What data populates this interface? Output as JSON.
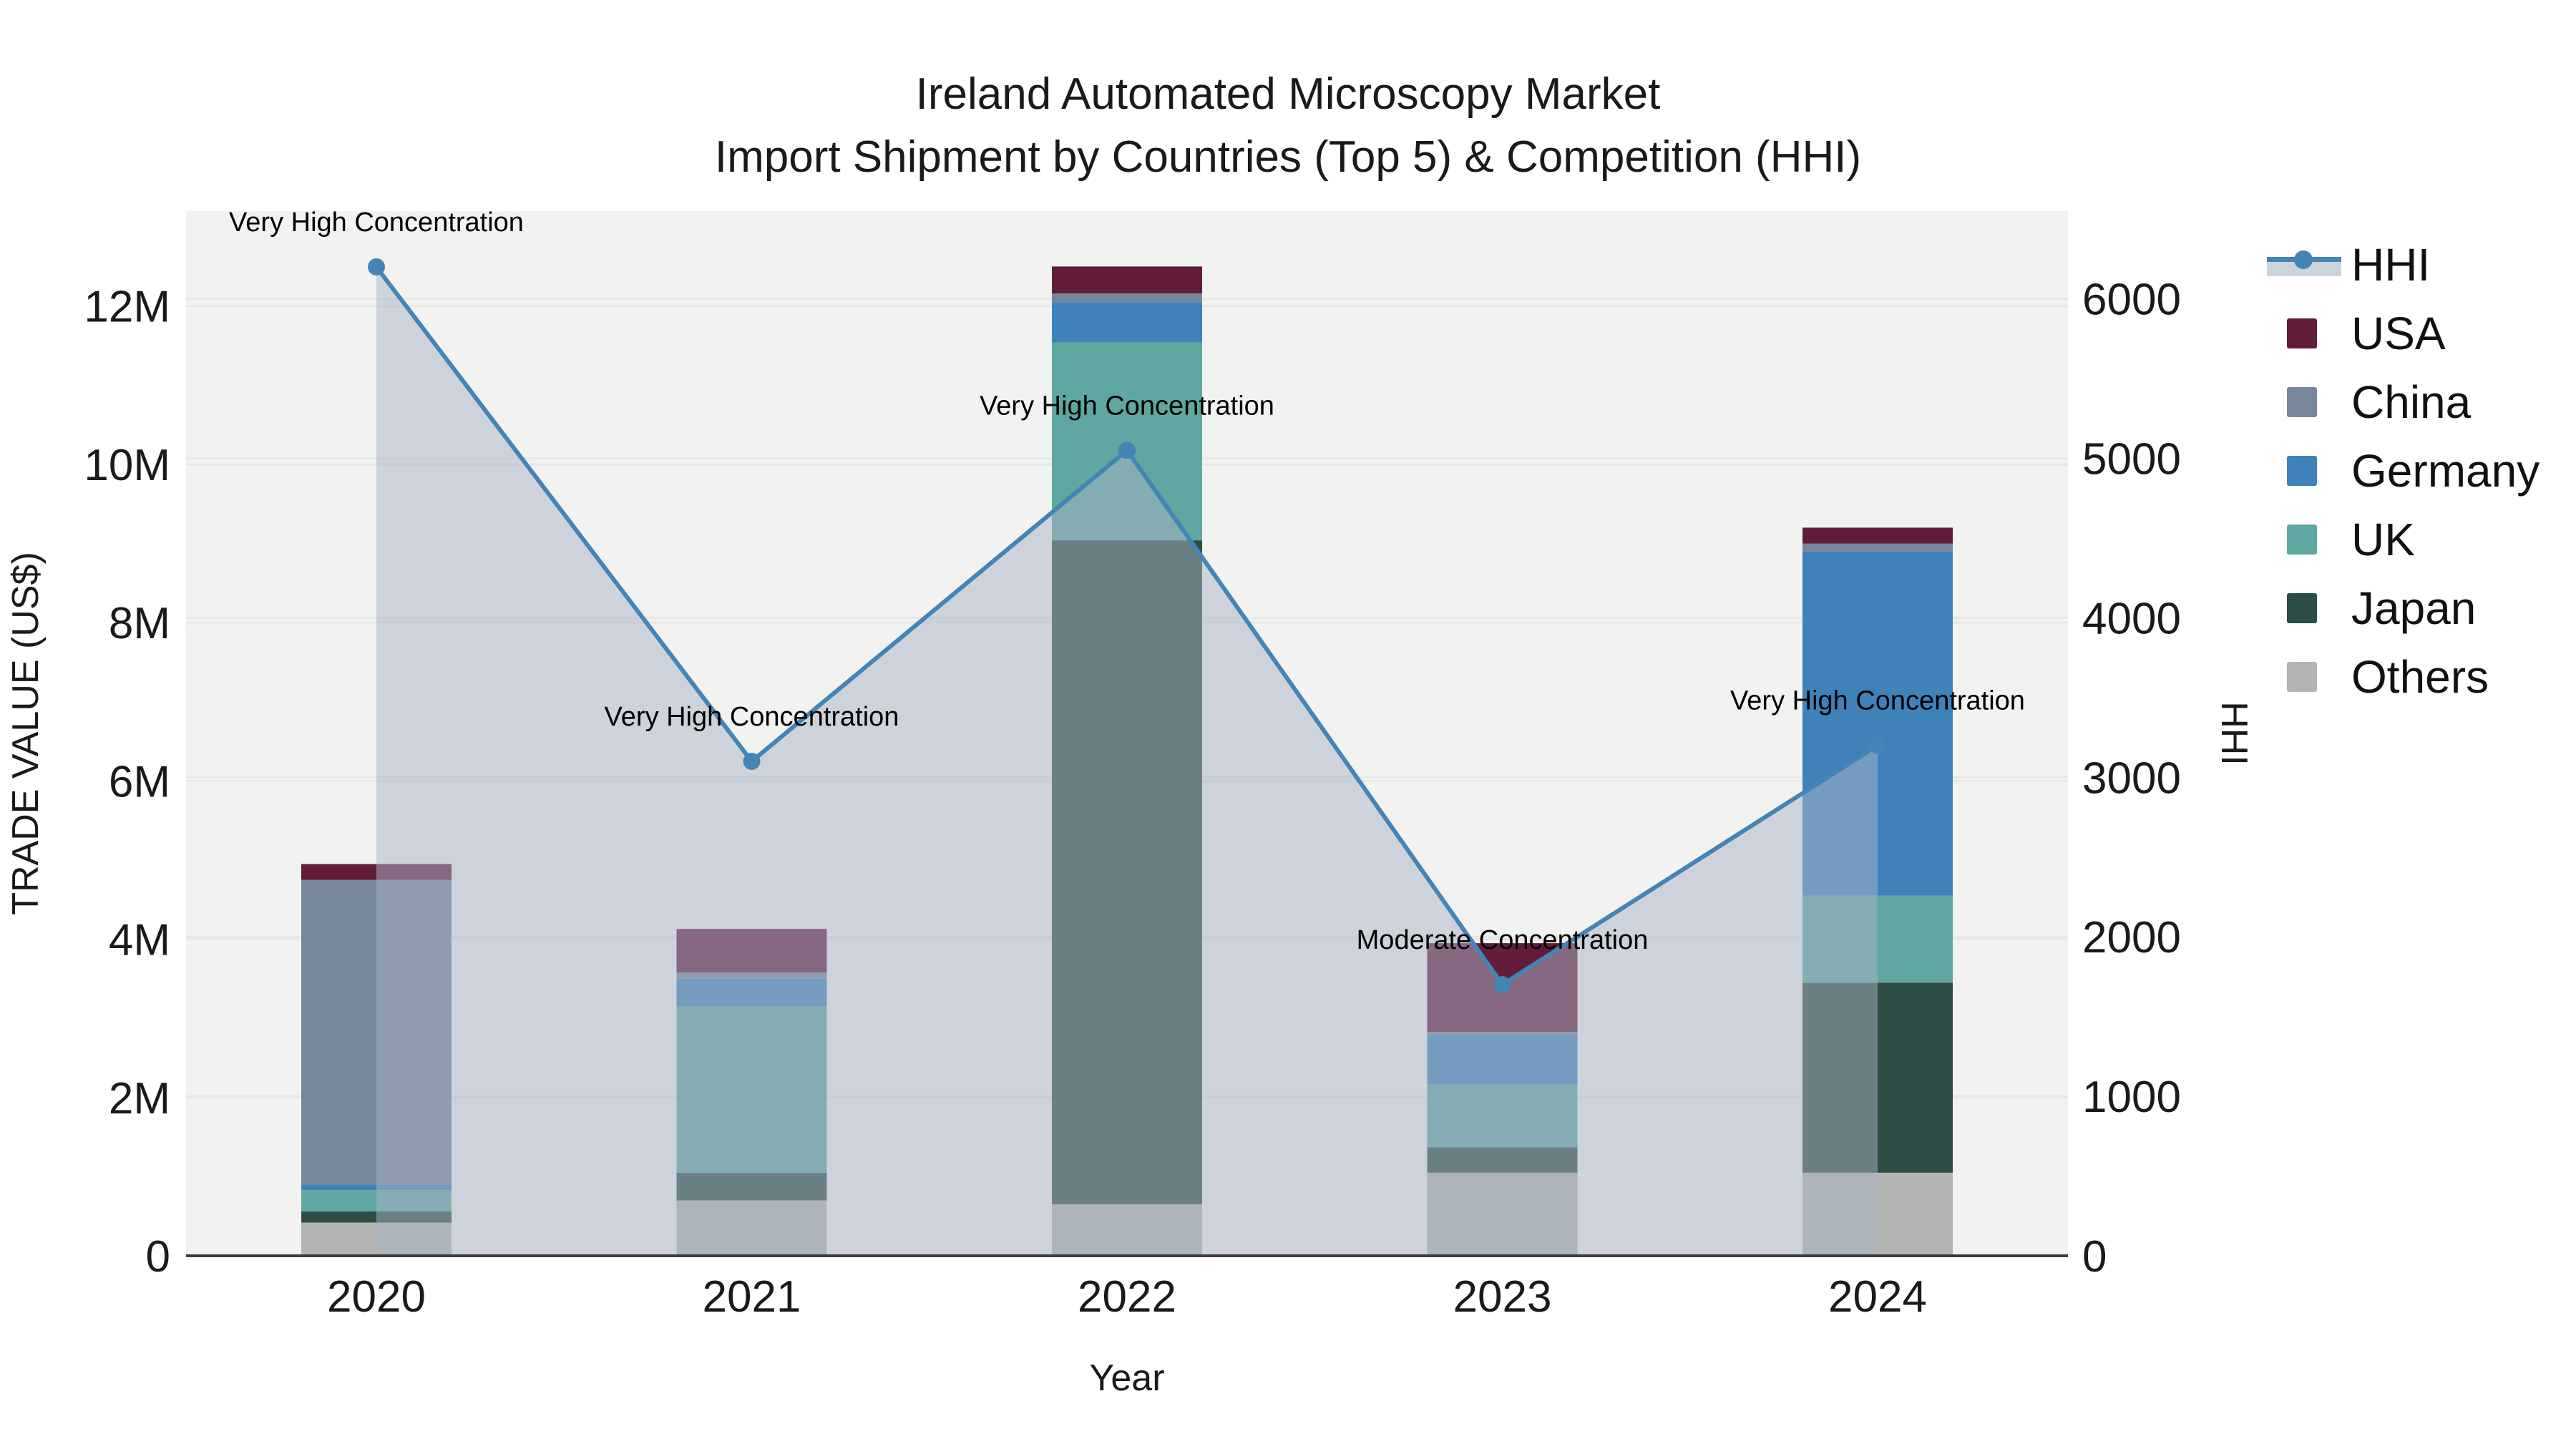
{
  "title": {
    "line1": "Ireland Automated Microscopy Market",
    "line2": "Import Shipment by Countries (Top 5) & Competition (HHI)"
  },
  "axes": {
    "x": {
      "title": "Year",
      "categories": [
        "2020",
        "2021",
        "2022",
        "2023",
        "2024"
      ]
    },
    "y_left": {
      "title": "TRADE VALUE (US$)",
      "ticks": [
        "0",
        "2M",
        "4M",
        "6M",
        "8M",
        "10M",
        "12M"
      ]
    },
    "y_right": {
      "title": "HHI",
      "ticks": [
        "0",
        "1000",
        "2000",
        "3000",
        "4000",
        "5000",
        "6000"
      ]
    }
  },
  "legend": {
    "items": [
      {
        "label": "HHI",
        "kind": "line",
        "color": "#4484b6"
      },
      {
        "label": "USA",
        "kind": "box",
        "color": "#621d3b"
      },
      {
        "label": "China",
        "kind": "box",
        "color": "#76879b"
      },
      {
        "label": "Germany",
        "kind": "box",
        "color": "#3f82ba"
      },
      {
        "label": "UK",
        "kind": "box",
        "color": "#5fa7a1"
      },
      {
        "label": "Japan",
        "kind": "box",
        "color": "#2d4c45"
      },
      {
        "label": "Others",
        "kind": "box",
        "color": "#b3b5b3"
      }
    ]
  },
  "chart_data": {
    "type": "combo: stacked bar (trade value, left axis) + line/area (HHI, right axis)",
    "categories": [
      "2020",
      "2021",
      "2022",
      "2023",
      "2024"
    ],
    "bar_value_unit": "million US$",
    "series": [
      {
        "name": "Others",
        "color": "#b3b5b3",
        "values": [
          0.42,
          0.7,
          0.65,
          1.05,
          1.05
        ]
      },
      {
        "name": "Japan",
        "color": "#2d4c45",
        "values": [
          0.14,
          0.35,
          8.39,
          0.32,
          2.4
        ]
      },
      {
        "name": "UK",
        "color": "#5fa7a1",
        "values": [
          0.27,
          2.1,
          2.5,
          0.8,
          1.1
        ]
      },
      {
        "name": "Germany",
        "color": "#3f82ba",
        "values": [
          0.07,
          0.35,
          0.51,
          0.62,
          4.35
        ]
      },
      {
        "name": "China",
        "color": "#76879b",
        "values": [
          3.85,
          0.08,
          0.11,
          0.04,
          0.1
        ]
      },
      {
        "name": "USA",
        "color": "#621d3b",
        "values": [
          0.2,
          0.55,
          0.34,
          1.12,
          0.2
        ]
      }
    ],
    "stack_order_note": "bottom to top: Others, Japan, UK, Germany, China, USA",
    "line": {
      "name": "HHI",
      "color": "#4484b6",
      "area_color": "#a9b4c6",
      "area_opacity": 0.5,
      "values": [
        6200,
        3100,
        5050,
        1700,
        3200
      ]
    },
    "annotations": [
      {
        "x": "2020",
        "text": "Very High Concentration"
      },
      {
        "x": "2021",
        "text": "Very High Concentration"
      },
      {
        "x": "2022",
        "text": "Very High Concentration"
      },
      {
        "x": "2023",
        "text": "Moderate Concentration"
      },
      {
        "x": "2024",
        "text": "Very High Concentration"
      }
    ],
    "y_left_axis": {
      "label": "TRADE VALUE (US$)",
      "tick_values_millions": [
        0,
        2,
        4,
        6,
        8,
        10,
        12
      ],
      "range_millions": [
        0,
        13.2
      ],
      "grid": true
    },
    "y_right_axis": {
      "label": "HHI",
      "tick_values": [
        0,
        1000,
        2000,
        3000,
        4000,
        5000,
        6000
      ],
      "range": [
        0,
        6550
      ],
      "grid": true
    },
    "x_axis": {
      "label": "Year"
    },
    "legend_position": "right",
    "colors": {
      "plot_background": "#f2f3f1",
      "gridline": "#e6e8e6",
      "baseline": "#3d3d3d",
      "annotation_text": "#000000"
    }
  }
}
